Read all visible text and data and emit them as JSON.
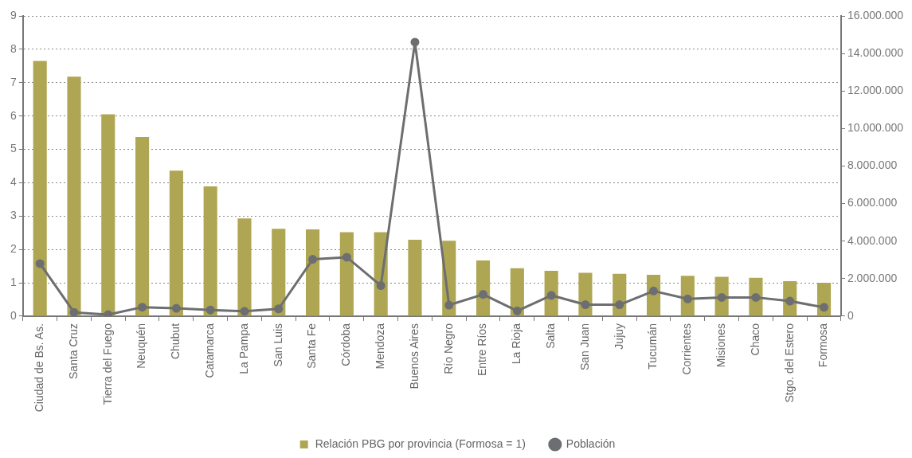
{
  "chart_data": {
    "type": "bar",
    "categories": [
      "Ciudad de Bs. As.",
      "Santa Cruz",
      "Tierra del Fuego",
      "Neuquén",
      "Chubut",
      "Catamarca",
      "La Pampa",
      "San Luis",
      "Santa Fe",
      "Córdoba",
      "Mendoza",
      "Buenos Aires",
      "Río Negro",
      "Entre Ríos",
      "La Rioja",
      "Salta",
      "San Juan",
      "Jujuy",
      "Tucumán",
      "Corrientes",
      "Misiones",
      "Chaco",
      "Stgo. del Estero",
      "Formosa"
    ],
    "series": [
      {
        "name": "Relación PBG por provincia (Formosa = 1)",
        "color": "#aea652",
        "values": [
          7.65,
          7.18,
          6.05,
          5.37,
          4.36,
          3.89,
          2.93,
          2.62,
          2.6,
          2.52,
          2.52,
          2.29,
          2.26,
          1.67,
          1.44,
          1.36,
          1.3,
          1.27,
          1.24,
          1.21,
          1.18,
          1.15,
          1.05,
          1.0
        ]
      },
      {
        "name": "Población",
        "type": "line",
        "axis": "y2",
        "color": "#6d6e71",
        "marker": "circle",
        "values": [
          2800000,
          200000,
          80000,
          480000,
          420000,
          330000,
          260000,
          390000,
          3030000,
          3140000,
          1630000,
          14600000,
          590000,
          1160000,
          280000,
          1110000,
          610000,
          610000,
          1340000,
          920000,
          1000000,
          1000000,
          800000,
          470000
        ]
      }
    ],
    "ylim": [
      0,
      9
    ],
    "yticks": [
      0,
      1,
      2,
      3,
      4,
      5,
      6,
      7,
      8,
      9
    ],
    "y2lim": [
      0,
      16000000
    ],
    "y2ticks": [
      0,
      {
        "value": 2000000,
        "label": "2.000.000"
      },
      {
        "value": 4000000,
        "label": "4.000.000"
      },
      {
        "value": 6000000,
        "label": "6.000.000"
      },
      {
        "value": 8000000,
        "label": "8.000.000"
      },
      {
        "value": 10000000,
        "label": "10.000.000"
      },
      {
        "value": 12000000,
        "label": "12.000.000"
      },
      {
        "value": 14000000,
        "label": "14.000.000"
      },
      {
        "value": 16000000,
        "label": "16.000.000"
      }
    ],
    "grid": "y",
    "legend": "bottom"
  }
}
